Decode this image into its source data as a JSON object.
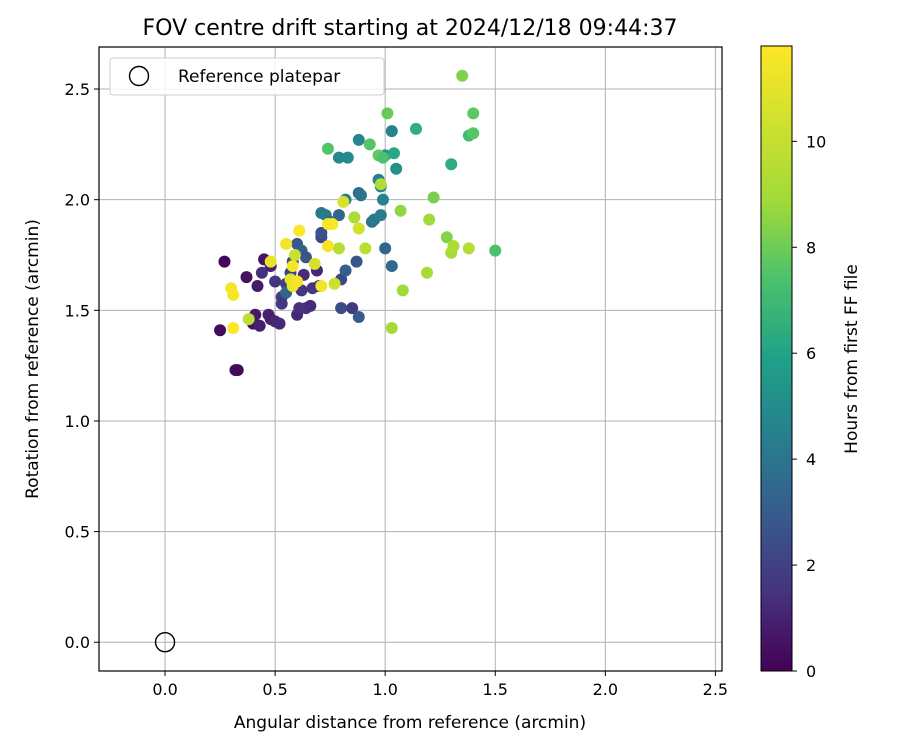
{
  "chart_data": {
    "type": "scatter",
    "title": "FOV centre drift starting at 2024/12/18 09:44:37",
    "xlabel": "Angular distance from reference (arcmin)",
    "ylabel": "Rotation from reference (arcmin)",
    "xlim": [
      -0.3,
      2.53
    ],
    "ylim": [
      -0.13,
      2.69
    ],
    "xticks": [
      0.0,
      0.5,
      1.0,
      1.5,
      2.0,
      2.5
    ],
    "xtick_labels": [
      "0.0",
      "0.5",
      "1.0",
      "1.5",
      "2.0",
      "2.5"
    ],
    "yticks": [
      0.0,
      0.5,
      1.0,
      1.5,
      2.0,
      2.5
    ],
    "ytick_labels": [
      "0.0",
      "0.5",
      "1.0",
      "1.5",
      "2.0",
      "2.5"
    ],
    "grid": true,
    "legend": {
      "placement": "top-left",
      "entries": [
        {
          "label": "Reference platepar",
          "marker": "open-circle",
          "x": 0.0,
          "y": 0.0
        }
      ]
    },
    "colorbar": {
      "label": "Hours from first FF file",
      "colormap": "viridis",
      "range": [
        0,
        11.8
      ],
      "ticks": [
        0,
        2,
        4,
        6,
        8,
        10
      ],
      "tick_labels": [
        "0",
        "2",
        "4",
        "6",
        "8",
        "10"
      ]
    },
    "series": [
      {
        "points": [
          {
            "x": 0.27,
            "y": 1.72,
            "c": 0.2
          },
          {
            "x": 0.25,
            "y": 1.41,
            "c": 0.3
          },
          {
            "x": 0.33,
            "y": 1.23,
            "c": 0.2
          },
          {
            "x": 0.32,
            "y": 1.23,
            "c": 0.3
          },
          {
            "x": 0.37,
            "y": 1.65,
            "c": 0.5
          },
          {
            "x": 0.4,
            "y": 1.44,
            "c": 0.6
          },
          {
            "x": 0.41,
            "y": 1.48,
            "c": 0.7
          },
          {
            "x": 0.42,
            "y": 1.61,
            "c": 0.8
          },
          {
            "x": 0.43,
            "y": 1.43,
            "c": 0.9
          },
          {
            "x": 0.45,
            "y": 1.73,
            "c": 0.6
          },
          {
            "x": 0.47,
            "y": 1.48,
            "c": 1.0
          },
          {
            "x": 0.48,
            "y": 1.46,
            "c": 0.9
          },
          {
            "x": 0.5,
            "y": 1.45,
            "c": 1.1
          },
          {
            "x": 0.52,
            "y": 1.44,
            "c": 1.2
          },
          {
            "x": 0.44,
            "y": 1.67,
            "c": 1.4
          },
          {
            "x": 0.48,
            "y": 1.7,
            "c": 1.0
          },
          {
            "x": 0.5,
            "y": 1.63,
            "c": 1.6
          },
          {
            "x": 0.53,
            "y": 1.53,
            "c": 1.8
          },
          {
            "x": 0.53,
            "y": 1.56,
            "c": 1.7
          },
          {
            "x": 0.55,
            "y": 1.62,
            "c": 2.0
          },
          {
            "x": 0.57,
            "y": 1.67,
            "c": 2.2
          },
          {
            "x": 0.58,
            "y": 1.72,
            "c": 2.5
          },
          {
            "x": 0.6,
            "y": 1.48,
            "c": 1.2
          },
          {
            "x": 0.61,
            "y": 1.51,
            "c": 1.4
          },
          {
            "x": 0.62,
            "y": 1.59,
            "c": 1.6
          },
          {
            "x": 0.63,
            "y": 1.66,
            "c": 1.3
          },
          {
            "x": 0.64,
            "y": 1.51,
            "c": 1.5
          },
          {
            "x": 0.66,
            "y": 1.52,
            "c": 1.3
          },
          {
            "x": 0.67,
            "y": 1.6,
            "c": 1.7
          },
          {
            "x": 0.69,
            "y": 1.68,
            "c": 1.1
          },
          {
            "x": 0.7,
            "y": 1.61,
            "c": 1.3
          },
          {
            "x": 0.6,
            "y": 1.8,
            "c": 2.8
          },
          {
            "x": 0.62,
            "y": 1.77,
            "c": 3.0
          },
          {
            "x": 0.64,
            "y": 1.74,
            "c": 2.7
          },
          {
            "x": 0.71,
            "y": 1.83,
            "c": 2.3
          },
          {
            "x": 0.71,
            "y": 1.85,
            "c": 2.6
          },
          {
            "x": 0.8,
            "y": 1.51,
            "c": 2.4
          },
          {
            "x": 0.8,
            "y": 1.64,
            "c": 2.3
          },
          {
            "x": 0.82,
            "y": 1.68,
            "c": 3.0
          },
          {
            "x": 0.85,
            "y": 1.51,
            "c": 1.8
          },
          {
            "x": 0.87,
            "y": 1.72,
            "c": 2.7
          },
          {
            "x": 0.88,
            "y": 1.47,
            "c": 2.9
          },
          {
            "x": 0.55,
            "y": 1.58,
            "c": 3.3
          },
          {
            "x": 0.71,
            "y": 1.94,
            "c": 4.0
          },
          {
            "x": 0.73,
            "y": 1.93,
            "c": 4.2
          },
          {
            "x": 0.75,
            "y": 1.9,
            "c": 3.6
          },
          {
            "x": 0.79,
            "y": 1.93,
            "c": 3.4
          },
          {
            "x": 0.82,
            "y": 2.0,
            "c": 4.4
          },
          {
            "x": 0.88,
            "y": 2.03,
            "c": 3.6
          },
          {
            "x": 0.89,
            "y": 2.02,
            "c": 3.9
          },
          {
            "x": 0.94,
            "y": 1.9,
            "c": 3.8
          },
          {
            "x": 0.95,
            "y": 1.91,
            "c": 4.1
          },
          {
            "x": 0.98,
            "y": 1.93,
            "c": 4.3
          },
          {
            "x": 0.97,
            "y": 2.09,
            "c": 4.5
          },
          {
            "x": 0.98,
            "y": 2.06,
            "c": 4.4
          },
          {
            "x": 0.99,
            "y": 2.0,
            "c": 4.6
          },
          {
            "x": 1.0,
            "y": 1.78,
            "c": 3.3
          },
          {
            "x": 1.03,
            "y": 1.7,
            "c": 3.5
          },
          {
            "x": 0.79,
            "y": 2.19,
            "c": 4.8
          },
          {
            "x": 0.83,
            "y": 2.19,
            "c": 4.9
          },
          {
            "x": 0.88,
            "y": 2.27,
            "c": 4.7
          },
          {
            "x": 1.0,
            "y": 2.2,
            "c": 5.0
          },
          {
            "x": 1.03,
            "y": 2.31,
            "c": 4.6
          },
          {
            "x": 1.05,
            "y": 2.14,
            "c": 5.2
          },
          {
            "x": 1.04,
            "y": 2.21,
            "c": 6.2
          },
          {
            "x": 1.14,
            "y": 2.32,
            "c": 6.5
          },
          {
            "x": 0.74,
            "y": 2.23,
            "c": 7.5
          },
          {
            "x": 0.93,
            "y": 2.25,
            "c": 7.6
          },
          {
            "x": 0.97,
            "y": 2.2,
            "c": 7.8
          },
          {
            "x": 0.99,
            "y": 2.19,
            "c": 7.4
          },
          {
            "x": 1.01,
            "y": 2.39,
            "c": 7.9
          },
          {
            "x": 1.3,
            "y": 2.16,
            "c": 6.4
          },
          {
            "x": 1.35,
            "y": 2.56,
            "c": 8.3
          },
          {
            "x": 1.38,
            "y": 2.29,
            "c": 7.1
          },
          {
            "x": 1.4,
            "y": 2.3,
            "c": 7.6
          },
          {
            "x": 1.4,
            "y": 2.39,
            "c": 7.7
          },
          {
            "x": 1.22,
            "y": 2.01,
            "c": 8.2
          },
          {
            "x": 1.2,
            "y": 1.91,
            "c": 8.9
          },
          {
            "x": 1.07,
            "y": 1.95,
            "c": 8.6
          },
          {
            "x": 1.28,
            "y": 1.83,
            "c": 8.4
          },
          {
            "x": 1.5,
            "y": 1.77,
            "c": 7.4
          },
          {
            "x": 1.3,
            "y": 1.76,
            "c": 9.0
          },
          {
            "x": 1.31,
            "y": 1.79,
            "c": 9.3
          },
          {
            "x": 1.38,
            "y": 1.78,
            "c": 9.5
          },
          {
            "x": 1.19,
            "y": 1.67,
            "c": 9.1
          },
          {
            "x": 1.08,
            "y": 1.59,
            "c": 8.9
          },
          {
            "x": 1.03,
            "y": 1.42,
            "c": 9.0
          },
          {
            "x": 0.98,
            "y": 2.07,
            "c": 9.4
          },
          {
            "x": 0.86,
            "y": 1.92,
            "c": 9.2
          },
          {
            "x": 0.79,
            "y": 1.78,
            "c": 9.6
          },
          {
            "x": 0.91,
            "y": 1.78,
            "c": 9.7
          },
          {
            "x": 0.88,
            "y": 1.87,
            "c": 10.4
          },
          {
            "x": 0.81,
            "y": 1.99,
            "c": 10.6
          },
          {
            "x": 0.77,
            "y": 1.62,
            "c": 10.2
          },
          {
            "x": 0.68,
            "y": 1.71,
            "c": 10.5
          },
          {
            "x": 0.59,
            "y": 1.75,
            "c": 10.1
          },
          {
            "x": 0.38,
            "y": 1.46,
            "c": 9.8
          },
          {
            "x": 0.57,
            "y": 1.64,
            "c": 11.0
          },
          {
            "x": 0.58,
            "y": 1.61,
            "c": 11.3
          },
          {
            "x": 0.6,
            "y": 1.63,
            "c": 11.5
          },
          {
            "x": 0.58,
            "y": 1.7,
            "c": 11.6
          },
          {
            "x": 0.55,
            "y": 1.8,
            "c": 11.4
          },
          {
            "x": 0.61,
            "y": 1.86,
            "c": 11.7
          },
          {
            "x": 0.48,
            "y": 1.72,
            "c": 11.2
          },
          {
            "x": 0.3,
            "y": 1.6,
            "c": 11.5
          },
          {
            "x": 0.31,
            "y": 1.57,
            "c": 11.6
          },
          {
            "x": 0.31,
            "y": 1.42,
            "c": 11.7
          },
          {
            "x": 0.71,
            "y": 1.61,
            "c": 11.4
          },
          {
            "x": 0.74,
            "y": 1.79,
            "c": 11.5
          },
          {
            "x": 0.74,
            "y": 1.89,
            "c": 11.6
          },
          {
            "x": 0.76,
            "y": 1.89,
            "c": 11.7
          }
        ]
      }
    ]
  }
}
